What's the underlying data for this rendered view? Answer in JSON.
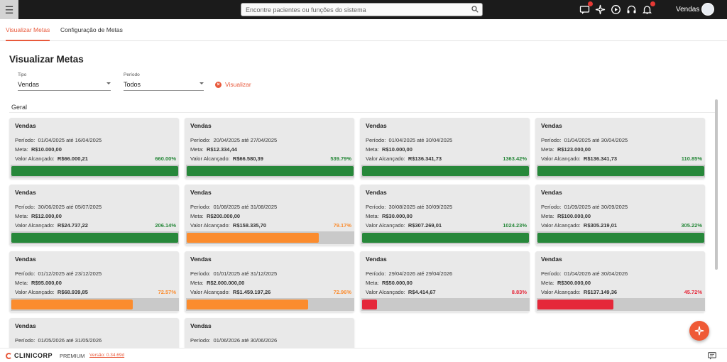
{
  "topbar": {
    "menu_icon": "hamburger-icon",
    "search_placeholder": "Encontre pacientes ou funções do sistema",
    "user_name": "Vendas"
  },
  "tabs": [
    {
      "label": "Visualizar Metas",
      "active": true
    },
    {
      "label": "Configuração de Metas",
      "active": false
    }
  ],
  "page": {
    "title": "Visualizar Metas"
  },
  "filters": {
    "tipo": {
      "label": "Tipo",
      "value": "Vendas"
    },
    "periodo": {
      "label": "Período",
      "value": "Todos"
    },
    "action_label": "Visualizar"
  },
  "section": {
    "title": "Geral"
  },
  "labels": {
    "periodo": "Período:",
    "meta": "Meta:",
    "valor": "Valor Alcançado:"
  },
  "colors": {
    "green": "#27883a",
    "orange": "#fb8c2e",
    "red": "#e5283a",
    "accent": "#e8593b"
  },
  "cards": [
    {
      "title": "Vendas",
      "period": "01/04/2025 até 16/04/2025",
      "meta": "R$10.000,00",
      "valor": "R$66.000,21",
      "pct": "660.00%",
      "status": "green",
      "progress": 1.0
    },
    {
      "title": "Vendas",
      "period": "20/04/2025 até 27/04/2025",
      "meta": "R$12.334,44",
      "valor": "R$66.580,39",
      "pct": "539.79%",
      "status": "green",
      "progress": 1.0
    },
    {
      "title": "Vendas",
      "period": "01/04/2025 até 30/04/2025",
      "meta": "R$10.000,00",
      "valor": "R$136.341,73",
      "pct": "1363.42%",
      "status": "green",
      "progress": 1.0
    },
    {
      "title": "Vendas",
      "period": "01/04/2025 até 30/04/2025",
      "meta": "R$123.000,00",
      "valor": "R$136.341,73",
      "pct": "110.85%",
      "status": "green",
      "progress": 1.0
    },
    {
      "title": "Vendas",
      "period": "30/06/2025 até 05/07/2025",
      "meta": "R$12.000,00",
      "valor": "R$24.737,22",
      "pct": "206.14%",
      "status": "green",
      "progress": 1.0
    },
    {
      "title": "Vendas",
      "period": "01/08/2025 até 31/08/2025",
      "meta": "R$200.000,00",
      "valor": "R$158.335,70",
      "pct": "79.17%",
      "status": "orange",
      "progress": 0.7917
    },
    {
      "title": "Vendas",
      "period": "30/08/2025 até 30/09/2025",
      "meta": "R$30.000,00",
      "valor": "R$307.269,01",
      "pct": "1024.23%",
      "status": "green",
      "progress": 1.0
    },
    {
      "title": "Vendas",
      "period": "01/09/2025 até 30/09/2025",
      "meta": "R$100.000,00",
      "valor": "R$305.219,01",
      "pct": "305.22%",
      "status": "green",
      "progress": 1.0
    },
    {
      "title": "Vendas",
      "period": "01/12/2025 até 23/12/2025",
      "meta": "R$95.000,00",
      "valor": "R$68.939,85",
      "pct": "72.57%",
      "status": "orange",
      "progress": 0.7257
    },
    {
      "title": "Vendas",
      "period": "01/01/2025 até 31/12/2025",
      "meta": "R$2.000.000,00",
      "valor": "R$1.459.197,26",
      "pct": "72.96%",
      "status": "orange",
      "progress": 0.7296
    },
    {
      "title": "Vendas",
      "period": "29/04/2026 até 29/04/2026",
      "meta": "R$50.000,00",
      "valor": "R$4.414,67",
      "pct": "8.83%",
      "status": "red",
      "progress": 0.0883
    },
    {
      "title": "Vendas",
      "period": "01/04/2026 até 30/04/2026",
      "meta": "R$300.000,00",
      "valor": "R$137.149,36",
      "pct": "45.72%",
      "status": "red",
      "progress": 0.4572
    },
    {
      "title": "Vendas",
      "period": "01/05/2026 até 31/05/2026",
      "meta": "",
      "valor": "",
      "pct": "",
      "status": "",
      "progress": 0
    },
    {
      "title": "Vendas",
      "period": "01/06/2026 até 30/06/2026",
      "meta": "",
      "valor": "",
      "pct": "",
      "status": "",
      "progress": 0
    }
  ],
  "footer": {
    "logo_text": "CLINICORP",
    "plan": "PREMIUM",
    "version": "Versão: 0.34.69d"
  }
}
